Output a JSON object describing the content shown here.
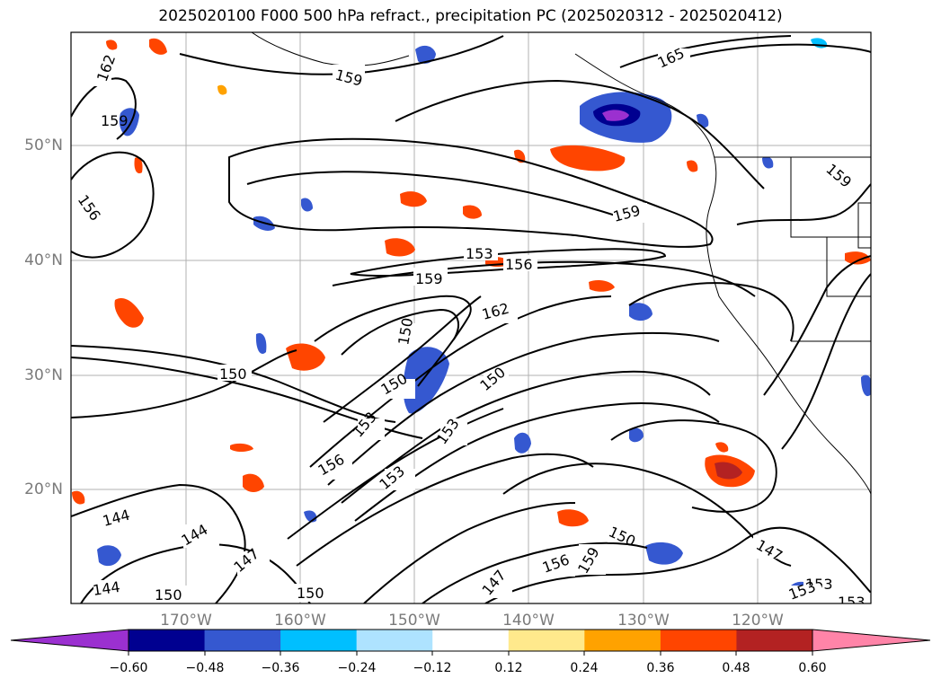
{
  "title": "2025020100 F000 500 hPa refract., precipitation PC (2025020312 - 2025020412)",
  "map": {
    "lat_labels": [
      "50°N",
      "40°N",
      "30°N",
      "20°N"
    ],
    "lon_labels": [
      "170°W",
      "160°W",
      "150°W",
      "140°W",
      "130°W",
      "120°W"
    ],
    "contour_labels": [
      "162",
      "159",
      "156",
      "165",
      "159",
      "159",
      "159",
      "153",
      "156",
      "159",
      "162",
      "150",
      "150",
      "150",
      "153",
      "156",
      "153",
      "153",
      "150",
      "144",
      "144",
      "144",
      "147",
      "150",
      "150",
      "147",
      "156",
      "159",
      "150",
      "147",
      "153",
      "153",
      "153"
    ]
  },
  "colorbar": {
    "colors": [
      "#9b30d0",
      "#000090",
      "#3558d0",
      "#00bfff",
      "#aee3ff",
      "#ffffff",
      "#ffe98c",
      "#ffa200",
      "#ff4500",
      "#b32222",
      "#ff84a8"
    ],
    "tick_labels": [
      "−0.60",
      "−0.48",
      "−0.36",
      "−0.24",
      "−0.12",
      "0.12",
      "0.24",
      "0.36",
      "0.48",
      "0.60"
    ]
  }
}
